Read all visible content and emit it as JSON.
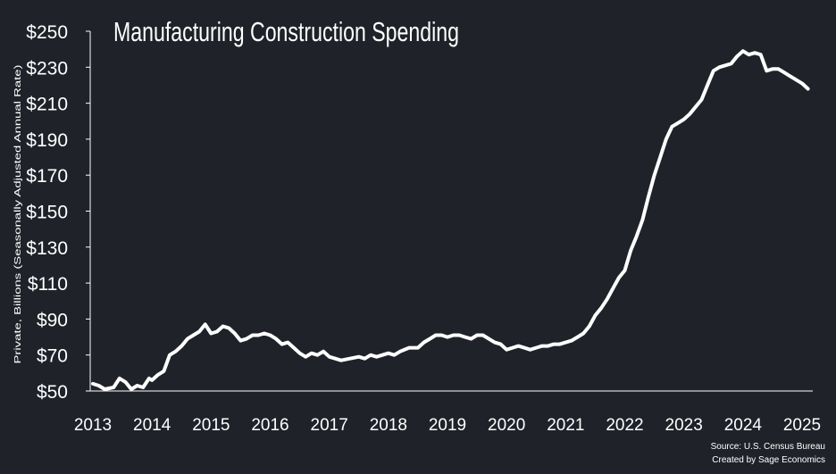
{
  "colors": {
    "background": "#1f2229",
    "line": "#ffffff",
    "text": "#ffffff"
  },
  "chart_data": {
    "type": "line",
    "title": "Manufacturing Construction Spending",
    "xlabel": "",
    "ylabel": "Private, Billions (Seasonally Adjusted Annual Rate)",
    "ylim": [
      50,
      250
    ],
    "xlim": [
      2013,
      2025.15
    ],
    "y_ticks": [
      50,
      70,
      90,
      110,
      130,
      150,
      170,
      190,
      210,
      230,
      250
    ],
    "y_tick_labels": [
      "$50",
      "$70",
      "$90",
      "$110",
      "$130",
      "$150",
      "$170",
      "$190",
      "$210",
      "$230",
      "$250"
    ],
    "x_ticks": [
      2013,
      2014,
      2015,
      2016,
      2017,
      2018,
      2019,
      2020,
      2021,
      2022,
      2023,
      2024,
      2025
    ],
    "x_tick_labels": [
      "2013",
      "2014",
      "2015",
      "2016",
      "2017",
      "2018",
      "2019",
      "2020",
      "2021",
      "2022",
      "2023",
      "2024",
      "2025"
    ],
    "grid": false,
    "source": "Source: U.S. Census Bureau",
    "credit": "Created by Sage Economics",
    "series": [
      {
        "name": "Manufacturing construction spending",
        "x": [
          2013.0,
          2013.1,
          2013.2,
          2013.35,
          2013.45,
          2013.55,
          2013.65,
          2013.75,
          2013.85,
          2013.95,
          2014.0,
          2014.1,
          2014.2,
          2014.3,
          2014.4,
          2014.5,
          2014.6,
          2014.7,
          2014.8,
          2014.9,
          2015.0,
          2015.1,
          2015.2,
          2015.3,
          2015.4,
          2015.5,
          2015.6,
          2015.7,
          2015.8,
          2015.9,
          2016.0,
          2016.1,
          2016.2,
          2016.3,
          2016.4,
          2016.5,
          2016.6,
          2016.7,
          2016.8,
          2016.9,
          2017.0,
          2017.1,
          2017.2,
          2017.35,
          2017.5,
          2017.6,
          2017.7,
          2017.8,
          2017.9,
          2018.0,
          2018.1,
          2018.2,
          2018.35,
          2018.5,
          2018.6,
          2018.7,
          2018.8,
          2018.9,
          2019.0,
          2019.1,
          2019.2,
          2019.3,
          2019.4,
          2019.5,
          2019.6,
          2019.7,
          2019.8,
          2019.9,
          2020.0,
          2020.1,
          2020.2,
          2020.3,
          2020.4,
          2020.5,
          2020.6,
          2020.7,
          2020.8,
          2020.9,
          2021.0,
          2021.1,
          2021.2,
          2021.3,
          2021.4,
          2021.5,
          2021.6,
          2021.7,
          2021.8,
          2021.9,
          2022.0,
          2022.1,
          2022.2,
          2022.3,
          2022.4,
          2022.5,
          2022.6,
          2022.7,
          2022.8,
          2022.9,
          2023.0,
          2023.1,
          2023.2,
          2023.3,
          2023.4,
          2023.5,
          2023.6,
          2023.7,
          2023.8,
          2023.9,
          2024.0,
          2024.1,
          2024.2,
          2024.3,
          2024.4,
          2024.5,
          2024.6,
          2024.7,
          2024.8,
          2024.9,
          2025.0,
          2025.1
        ],
        "values": [
          54,
          53,
          51,
          52,
          57,
          55,
          51,
          53,
          52,
          57,
          56,
          59,
          61,
          70,
          72,
          75,
          79,
          81,
          83,
          87,
          82,
          83,
          86,
          85,
          82,
          78,
          79,
          81,
          81,
          82,
          81,
          79,
          76,
          77,
          74,
          71,
          69,
          71,
          70,
          72,
          69,
          68,
          67,
          68,
          69,
          68,
          70,
          69,
          70,
          71,
          70,
          72,
          74,
          74,
          77,
          79,
          81,
          81,
          80,
          81,
          81,
          80,
          79,
          81,
          81,
          79,
          77,
          76,
          73,
          74,
          75,
          74,
          73,
          74,
          75,
          75,
          76,
          76,
          77,
          78,
          80,
          82,
          86,
          92,
          96,
          101,
          107,
          113,
          117,
          128,
          136,
          145,
          158,
          170,
          180,
          190,
          197,
          199,
          201,
          204,
          208,
          212,
          220,
          228,
          230,
          231,
          232,
          236,
          239,
          237,
          238,
          237,
          228,
          229,
          229,
          227,
          225,
          223,
          221,
          218
        ]
      }
    ]
  }
}
